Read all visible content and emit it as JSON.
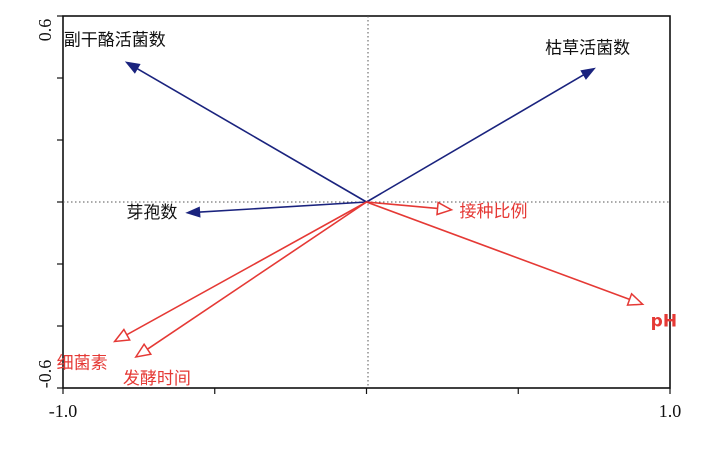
{
  "chart_data": {
    "type": "biplot",
    "title": "",
    "xlabel": "",
    "ylabel": "",
    "xlim": [
      -1.0,
      1.0
    ],
    "ylim": [
      -0.6,
      0.6
    ],
    "x_tick_labels": [
      {
        "value": -1.0,
        "text": "-1.0"
      },
      {
        "value": 1.0,
        "text": "1.0"
      }
    ],
    "y_tick_labels": [
      {
        "value": 0.6,
        "text": "0.6"
      },
      {
        "value": -0.6,
        "text": "-0.6"
      }
    ],
    "x_minor_ticks": [
      -0.5,
      0.0,
      0.5
    ],
    "y_minor_ticks": [
      0.4,
      0.2,
      0.0,
      -0.2,
      -0.4
    ],
    "reference_lines": {
      "x": 0.0,
      "y": 0.0,
      "style": "dotted"
    },
    "series": [
      {
        "group": "response",
        "color": "#1a237e",
        "arrow": "filled",
        "vectors": [
          {
            "label": "副干酪活菌数",
            "x": -0.79,
            "y": 0.45
          },
          {
            "label": "枯草活菌数",
            "x": 0.75,
            "y": 0.43
          },
          {
            "label": "芽孢数",
            "x": -0.59,
            "y": -0.035
          }
        ]
      },
      {
        "group": "explanatory",
        "color": "#e53935",
        "arrow": "open",
        "vectors": [
          {
            "label": "接种比例",
            "x": 0.28,
            "y": -0.025
          },
          {
            "label": "pH",
            "x": 0.91,
            "y": -0.33
          },
          {
            "label": "细菌素",
            "x": -0.83,
            "y": -0.45
          },
          {
            "label": "发酵时间",
            "x": -0.76,
            "y": -0.5
          }
        ]
      }
    ]
  }
}
